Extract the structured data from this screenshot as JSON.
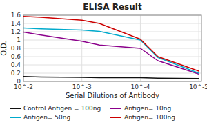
{
  "chart_data": {
    "type": "line",
    "title": "ELISA Result",
    "x_label": "Serial Dilutions of Antibody",
    "y_label": "O.D.",
    "x": [
      0.01,
      0.005,
      0.001,
      0.0005,
      0.0001,
      5e-05,
      1e-05
    ],
    "series": [
      {
        "name": "Control Antigen = 100ng",
        "color": "#111111",
        "values": [
          0.12,
          0.11,
          0.1,
          0.09,
          0.09,
          0.08,
          0.07
        ]
      },
      {
        "name": "Antigen= 10ng",
        "color": "#8b008b",
        "values": [
          1.19,
          1.12,
          0.97,
          0.88,
          0.8,
          0.5,
          0.18
        ]
      },
      {
        "name": "Antigen= 50ng",
        "color": "#00aacc",
        "values": [
          1.29,
          1.27,
          1.24,
          1.21,
          1.0,
          0.58,
          0.2
        ]
      },
      {
        "name": "Antigen= 100ng",
        "color": "#cc0000",
        "values": [
          1.57,
          1.55,
          1.48,
          1.4,
          1.02,
          0.6,
          0.25
        ]
      }
    ],
    "log": "x",
    "xlim": [
      0.01,
      9e-06
    ],
    "xticks": [
      {
        "value": 0.01,
        "label": "10^-2"
      },
      {
        "value": 0.001,
        "label": "10^-3"
      },
      {
        "value": 0.0001,
        "label": "10^-4"
      },
      {
        "value": 1e-05,
        "label": "10^-5"
      }
    ],
    "ylim": [
      0,
      1.6
    ],
    "yticks": [
      0,
      0.2,
      0.4,
      0.6,
      0.8,
      1,
      1.2,
      1.4,
      1.6
    ],
    "grid": true,
    "legend": "bottom"
  }
}
